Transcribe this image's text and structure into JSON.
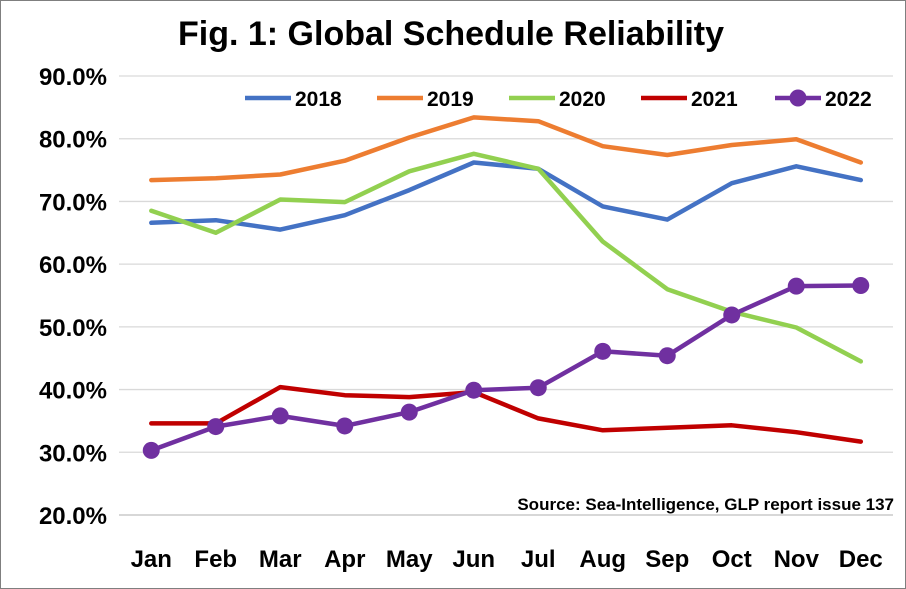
{
  "chart_data": {
    "type": "line",
    "title": "Fig. 1: Global Schedule Reliability",
    "annotation": "Source: Sea-Intelligence, GLP report issue 137",
    "categories": [
      "Jan",
      "Feb",
      "Mar",
      "Apr",
      "May",
      "Jun",
      "Jul",
      "Aug",
      "Sep",
      "Oct",
      "Nov",
      "Dec"
    ],
    "y_ticks": [
      "20.0%",
      "30.0%",
      "40.0%",
      "50.0%",
      "60.0%",
      "70.0%",
      "80.0%",
      "90.0%"
    ],
    "ylim": [
      20,
      90
    ],
    "grid": "horizontal",
    "legend_position": "top",
    "series": [
      {
        "name": "2018",
        "color": "#4472C4",
        "markers": false,
        "values": [
          66.6,
          67.0,
          65.5,
          67.8,
          71.8,
          76.2,
          75.2,
          69.2,
          67.1,
          72.9,
          75.6,
          73.4
        ]
      },
      {
        "name": "2019",
        "color": "#ED7D31",
        "markers": false,
        "values": [
          73.4,
          73.7,
          74.3,
          76.5,
          80.2,
          83.4,
          82.8,
          78.8,
          77.4,
          79.0,
          79.9,
          76.2
        ]
      },
      {
        "name": "2020",
        "color": "#92D050",
        "markers": false,
        "values": [
          68.5,
          65.0,
          70.3,
          69.9,
          74.8,
          77.6,
          75.2,
          63.6,
          56.0,
          52.4,
          49.9,
          44.5
        ]
      },
      {
        "name": "2021",
        "color": "#C00000",
        "markers": false,
        "values": [
          34.6,
          34.6,
          40.4,
          39.1,
          38.8,
          39.6,
          35.4,
          33.5,
          33.9,
          34.3,
          33.2,
          31.7
        ]
      },
      {
        "name": "2022",
        "color": "#7030A0",
        "markers": true,
        "values": [
          30.3,
          34.1,
          35.8,
          34.2,
          36.4,
          39.9,
          40.3,
          46.1,
          45.4,
          51.9,
          56.5,
          56.6
        ]
      }
    ]
  }
}
